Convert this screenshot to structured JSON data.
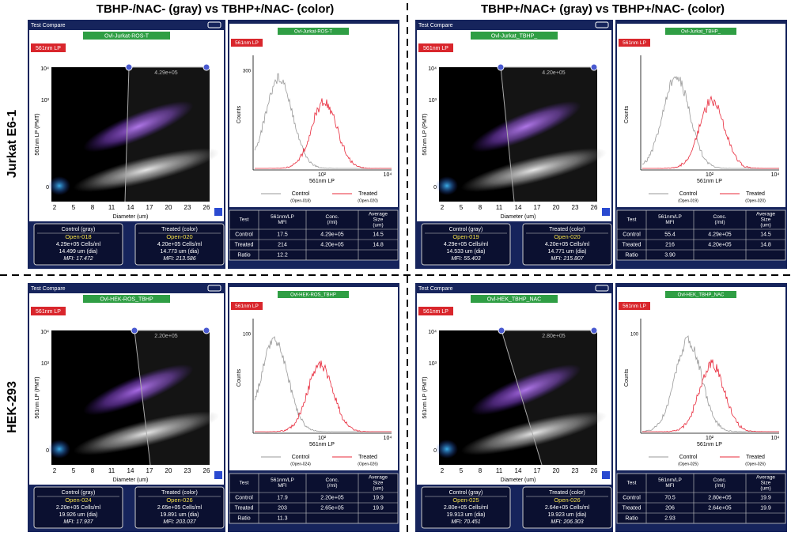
{
  "column_headers": [
    "TBHP-/NAC- (gray) vs TBHP+/NAC- (color)",
    "TBHP+/NAC+ (gray) vs TBHP+/NAC- (color)"
  ],
  "row_labels": [
    "Jurkat E6-1",
    "HEK-293"
  ],
  "common": {
    "app_title": "Test Compare",
    "channel": "561nm LP",
    "scatter_y_label": "561nm LP (PMT)",
    "scatter_y_ticks": [
      "10⁴",
      "10³",
      "0"
    ],
    "scatter_x_ticks": [
      2,
      5,
      8,
      11,
      14,
      17,
      20,
      23,
      26
    ],
    "scatter_x_label": "Diameter (um)",
    "hist_y_label": "Counts",
    "hist_x_label": "561nm LP",
    "hist_x_ticks": [
      "10²",
      "10⁴"
    ],
    "legend": [
      "Control",
      "Treated"
    ],
    "table_header": [
      [
        "Test"
      ],
      [
        "561nm/LP",
        "MFI"
      ],
      [
        "Conc.",
        "(/ml)"
      ],
      [
        "Average",
        "Size",
        "(um)"
      ]
    ],
    "table_row_names": [
      "Control",
      "Treated",
      "Ratio"
    ],
    "box_titles": [
      "Control (gray)",
      "Treated (color)"
    ]
  },
  "panels": [
    {
      "gate": "Ovl-Jurkat-ROS-T",
      "gate_value": "4.29e+05",
      "hist_y_max": "300",
      "legend_files": [
        "(Open-018)",
        "(Open-020)"
      ],
      "table_rows": [
        [
          "17.5",
          "4.29e+05",
          "14.5"
        ],
        [
          "214",
          "4.20e+05",
          "14.8"
        ],
        [
          "12.2"
        ]
      ],
      "boxes": [
        [
          "Open-018",
          "4.29e+05 Cells/ml",
          "14.499 um (dia)",
          "MFI: 17.472"
        ],
        [
          "Open-020",
          "4.20e+05 Cells/ml",
          "14.773 um (dia)",
          "MFI: 213.586"
        ]
      ]
    },
    {
      "gate": "Ovl-Jurkat_TBHP_",
      "gate_value": "4.20e+05",
      "hist_y_max": null,
      "legend_files": [
        "(Open-019)",
        "(Open-020)"
      ],
      "table_rows": [
        [
          "55.4",
          "4.29e+05",
          "14.5"
        ],
        [
          "216",
          "4.20e+05",
          "14.8"
        ],
        [
          "3.90"
        ]
      ],
      "boxes": [
        [
          "Open-019",
          "4.29e+05 Cells/ml",
          "14.533 um (dia)",
          "MFI: 55.403"
        ],
        [
          "Open-020",
          "4.20e+05 Cells/ml",
          "14.771 um (dia)",
          "MFI: 215.807"
        ]
      ]
    },
    {
      "gate": "Ovl-HEK-ROS_TBHP",
      "gate_value": "2.20e+05",
      "hist_y_max": "100",
      "legend_files": [
        "(Open-024)",
        "(Open-026)"
      ],
      "table_rows": [
        [
          "17.9",
          "2.20e+05",
          "19.9"
        ],
        [
          "203",
          "2.65e+05",
          "19.9"
        ],
        [
          "11.3"
        ]
      ],
      "boxes": [
        [
          "Open-024",
          "2.20e+05 Cells/ml",
          "19.926 um (dia)",
          "MFI: 17.937"
        ],
        [
          "Open-026",
          "2.65e+05 Cells/ml",
          "19.891 um (dia)",
          "MFI: 203.037"
        ]
      ]
    },
    {
      "gate": "Ovl-HEK_TBHP_NAC",
      "gate_value": "2.80e+05",
      "hist_y_max": "100",
      "legend_files": [
        "(Open-025)",
        "(Open-026)"
      ],
      "table_rows": [
        [
          "70.5",
          "2.80e+05",
          "19.9"
        ],
        [
          "206",
          "2.64e+05",
          "19.9"
        ],
        [
          "2.93"
        ]
      ],
      "boxes": [
        [
          "Open-025",
          "2.80e+05 Cells/ml",
          "19.913 um (dia)",
          "MFI: 70.451"
        ],
        [
          "Open-026",
          "2.64e+05 Cells/ml",
          "19.923 um (dia)",
          "MFI: 206.303"
        ]
      ]
    }
  ]
}
